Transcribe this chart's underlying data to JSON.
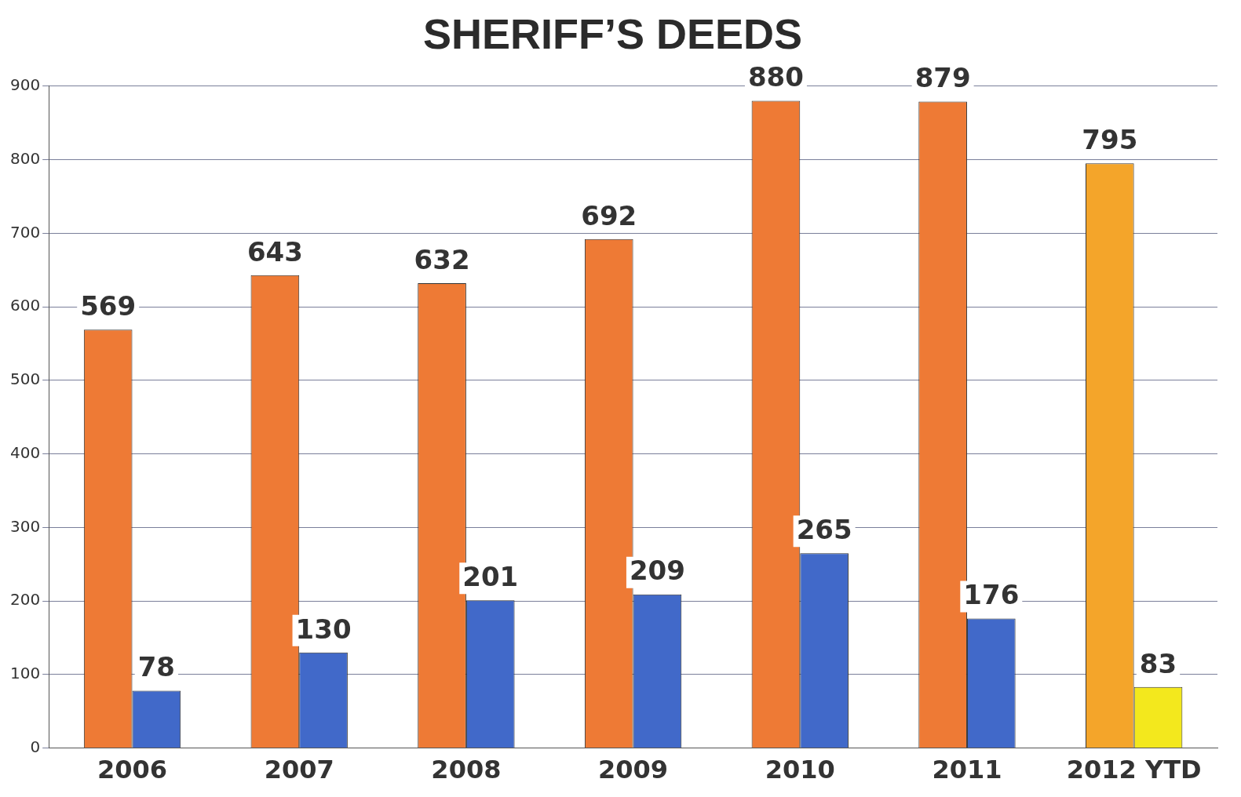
{
  "chart_data": {
    "type": "bar",
    "title": "SHERIFF’S DEEDS",
    "categories": [
      "2006",
      "2007",
      "2008",
      "2009",
      "2010",
      "2011",
      "2012 YTD"
    ],
    "series": [
      {
        "colors": [
          "#ee7a35",
          "#ee7a35",
          "#ee7a35",
          "#ee7a35",
          "#ee7a35",
          "#ee7a35",
          "#f4a52a"
        ],
        "values": [
          569,
          643,
          632,
          692,
          880,
          879,
          795
        ]
      },
      {
        "colors": [
          "#4169c9",
          "#4169c9",
          "#4169c9",
          "#4169c9",
          "#4169c9",
          "#4169c9",
          "#f3e81d"
        ],
        "values": [
          78,
          130,
          201,
          209,
          265,
          176,
          83
        ]
      }
    ],
    "ylim": [
      0,
      900
    ],
    "yticks": [
      0,
      100,
      200,
      300,
      400,
      500,
      600,
      700,
      800,
      900
    ],
    "grid": "y",
    "legend": false,
    "data_labels": true
  }
}
